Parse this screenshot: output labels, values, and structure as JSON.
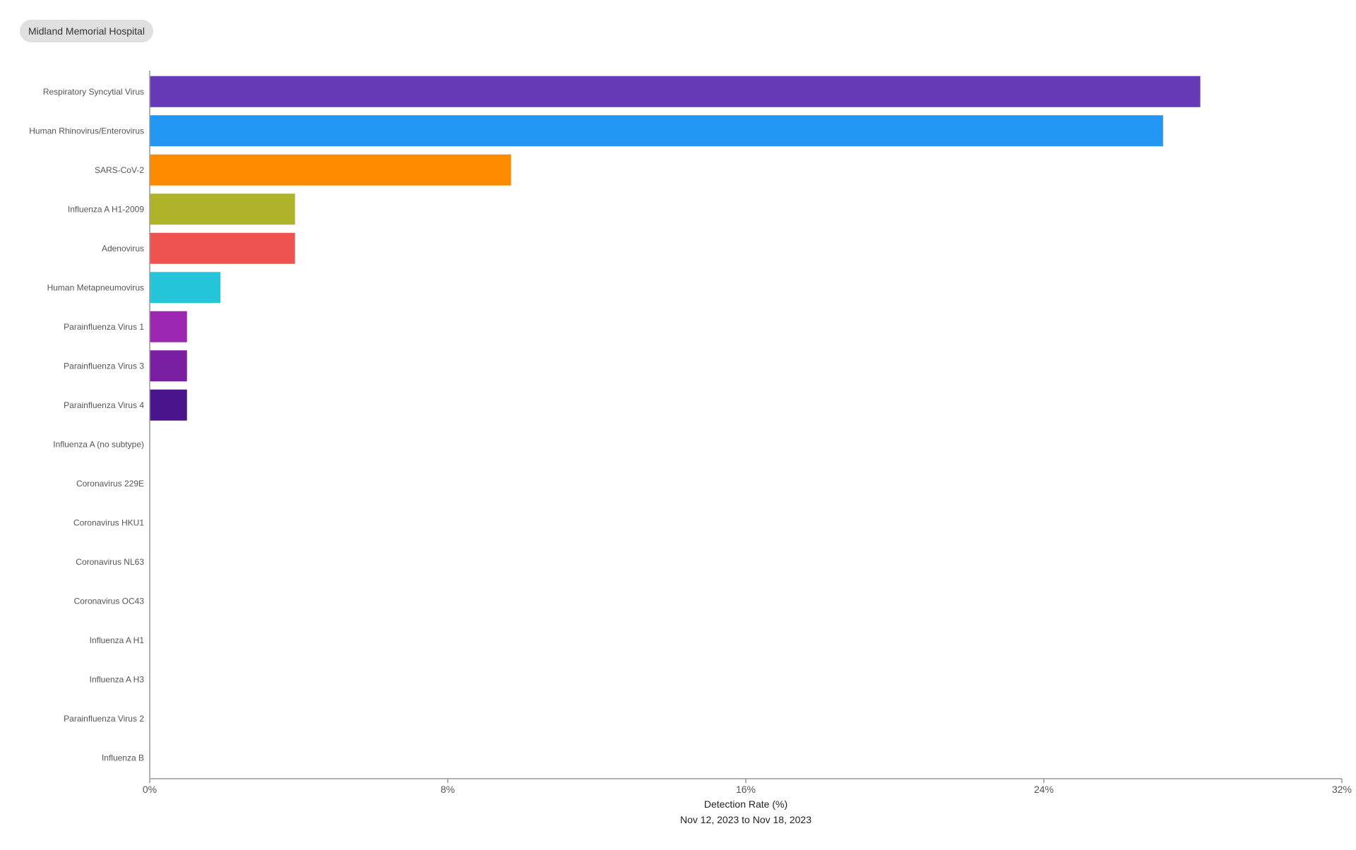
{
  "header": {
    "hospital_label": "Midland Memorial Hospital"
  },
  "chart_data": {
    "type": "bar",
    "orientation": "horizontal",
    "categories": [
      "Respiratory Syncytial Virus",
      "Human Rhinovirus/Enterovirus",
      "SARS-CoV-2",
      "Influenza A H1-2009",
      "Adenovirus",
      "Human Metapneumovirus",
      "Parainfluenza Virus 1",
      "Parainfluenza Virus 3",
      "Parainfluenza Virus 4",
      "Influenza A (no subtype)",
      "Coronavirus 229E",
      "Coronavirus HKU1",
      "Coronavirus NL63",
      "Coronavirus OC43",
      "Influenza A H1",
      "Influenza A H3",
      "Parainfluenza Virus 2",
      "Influenza B"
    ],
    "values": [
      28.2,
      27.2,
      9.7,
      3.9,
      3.9,
      1.9,
      1.0,
      1.0,
      1.0,
      0,
      0,
      0,
      0,
      0,
      0,
      0,
      0,
      0
    ],
    "colors": [
      "#673ab7",
      "#2196f3",
      "#ff8c00",
      "#afb42b",
      "#ef5350",
      "#26c6da",
      "#9c27b0",
      "#7b1fa2",
      "#4a148c",
      "#cccccc",
      "#cccccc",
      "#cccccc",
      "#cccccc",
      "#cccccc",
      "#cccccc",
      "#cccccc",
      "#cccccc",
      "#cccccc"
    ],
    "xlim": [
      0,
      32
    ],
    "xticks": [
      0,
      8,
      16,
      24,
      32
    ],
    "xtick_labels": [
      "0%",
      "8%",
      "16%",
      "24%",
      "32%"
    ],
    "xlabel": "Detection Rate (%)",
    "subtitle": "Nov 12, 2023 to Nov 18, 2023",
    "grid": false,
    "axis_color": "#999999"
  }
}
